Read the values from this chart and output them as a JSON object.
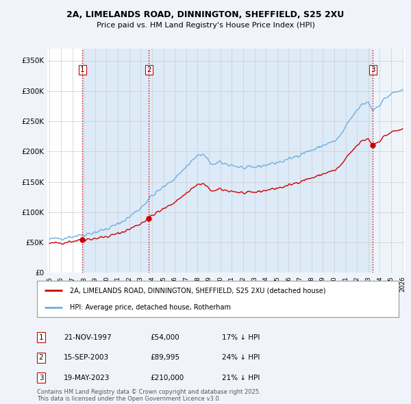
{
  "title1": "2A, LIMELANDS ROAD, DINNINGTON, SHEFFIELD, S25 2XU",
  "title2": "Price paid vs. HM Land Registry's House Price Index (HPI)",
  "ylabel_ticks": [
    "£0",
    "£50K",
    "£100K",
    "£150K",
    "£200K",
    "£250K",
    "£300K",
    "£350K"
  ],
  "ylabel_values": [
    0,
    50000,
    100000,
    150000,
    200000,
    250000,
    300000,
    350000
  ],
  "ylim": [
    0,
    370000
  ],
  "sale_dates_year": [
    1997.89,
    2003.71,
    2023.38
  ],
  "sale_prices": [
    54000,
    89995,
    210000
  ],
  "sale_labels": [
    "1",
    "2",
    "3"
  ],
  "legend_line1": "2A, LIMELANDS ROAD, DINNINGTON, SHEFFIELD, S25 2XU (detached house)",
  "legend_line2": "HPI: Average price, detached house, Rotherham",
  "table_rows": [
    [
      "1",
      "21-NOV-1997",
      "£54,000",
      "17% ↓ HPI"
    ],
    [
      "2",
      "15-SEP-2003",
      "£89,995",
      "24% ↓ HPI"
    ],
    [
      "3",
      "19-MAY-2023",
      "£210,000",
      "21% ↓ HPI"
    ]
  ],
  "footnote": "Contains HM Land Registry data © Crown copyright and database right 2025.\nThis data is licensed under the Open Government Licence v3.0.",
  "hpi_color": "#6ab0e0",
  "sale_color": "#cc0000",
  "background_color": "#f0f4fa",
  "plot_bg_color": "#ffffff",
  "shade_color": "#ddeaf7",
  "grid_color": "#cccccc"
}
